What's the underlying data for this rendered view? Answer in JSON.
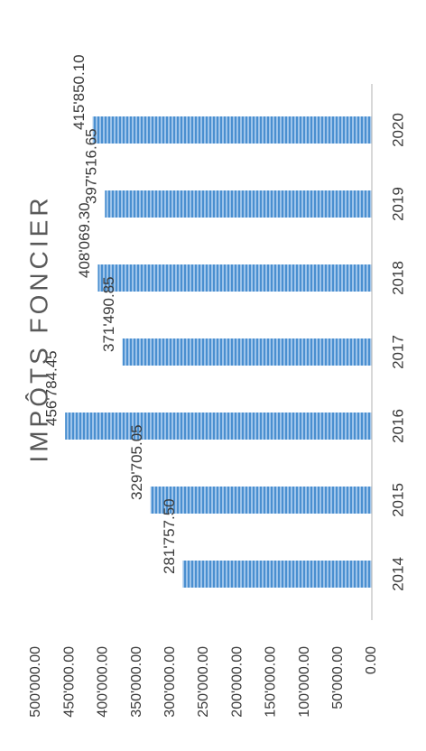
{
  "chart_data": {
    "type": "bar",
    "title": "IMPÔTS FONCIER",
    "xlabel": "",
    "ylabel": "",
    "categories": [
      "2014",
      "2015",
      "2016",
      "2017",
      "2018",
      "2019",
      "2020"
    ],
    "values": [
      281757.5,
      329705.05,
      456784.45,
      371490.85,
      408069.3,
      397516.65,
      415850.1
    ],
    "value_labels": [
      "281'757.50",
      "329'705.05",
      "456'784.45",
      "371'490.85",
      "408'069.30",
      "397'516.65",
      "415'850.10"
    ],
    "y_ticks": [
      0,
      50000,
      100000,
      150000,
      200000,
      250000,
      300000,
      350000,
      400000,
      450000,
      500000
    ],
    "y_tick_labels": [
      "0.00",
      "50'000.00",
      "100'000.00",
      "150'000.00",
      "200'000.00",
      "250'000.00",
      "300'000.00",
      "350'000.00",
      "400'000.00",
      "450'000.00",
      "500'000.00"
    ],
    "ylim": [
      0,
      500000
    ],
    "grid": false,
    "orientation": "rotated-90-clockwise",
    "bar_color": "#5b9bd5"
  }
}
